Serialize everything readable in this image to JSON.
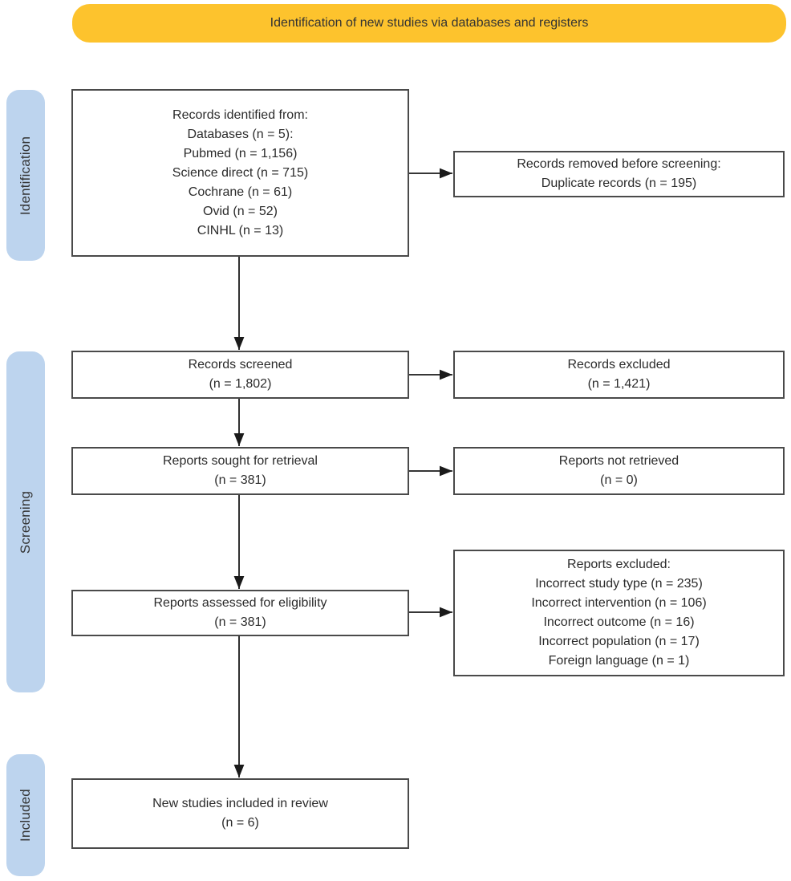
{
  "banner": {
    "label": "Identification of new studies via databases and registers"
  },
  "colors": {
    "banner_fill": "#FDC32D",
    "stage_fill": "#BDD4EE",
    "box_border": "#4A4A4A",
    "text": "#2B2B2B",
    "arrow": "#1A1A1A"
  },
  "stages": [
    {
      "label": "Identification"
    },
    {
      "label": "Screening"
    },
    {
      "label": "Included"
    }
  ],
  "boxes": {
    "records_identified": {
      "lines": [
        "Records identified from:",
        "Databases (n = 5):",
        "Pubmed (n = 1,156)",
        "Science direct (n = 715)",
        "Cochrane (n = 61)",
        "Ovid (n = 52)",
        "CINHL (n = 13)"
      ]
    },
    "records_removed": {
      "lines": [
        "Records removed before screening:",
        "Duplicate records (n = 195)"
      ]
    },
    "records_screened": {
      "lines": [
        "Records screened",
        "(n = 1,802)"
      ]
    },
    "records_excluded": {
      "lines": [
        "Records excluded",
        "(n = 1,421)"
      ]
    },
    "reports_sought": {
      "lines": [
        "Reports sought for retrieval",
        "(n = 381)"
      ]
    },
    "reports_not_retrieved": {
      "lines": [
        "Reports not retrieved",
        "(n = 0)"
      ]
    },
    "reports_assessed": {
      "lines": [
        "Reports assessed for eligibility",
        "(n = 381)"
      ]
    },
    "reports_excluded": {
      "lines": [
        "Reports excluded:",
        "Incorrect study type (n = 235)",
        "Incorrect intervention (n = 106)",
        "Incorrect outcome (n = 16)",
        "Incorrect population (n = 17)",
        "Foreign language (n = 1)"
      ]
    },
    "new_studies": {
      "lines": [
        "New studies included in review",
        "(n = 6)"
      ]
    }
  }
}
